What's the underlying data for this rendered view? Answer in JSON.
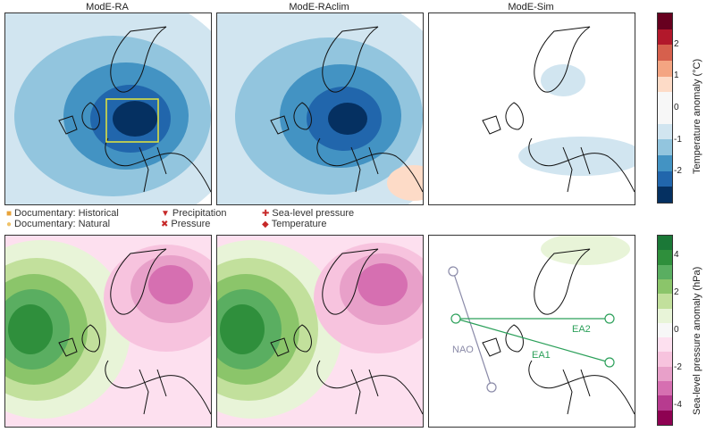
{
  "panels": {
    "col1": "ModE-RA",
    "col2": "ModE-RAclim",
    "col3": "ModE-Sim"
  },
  "legend": {
    "doc_hist": "Documentary: Historical",
    "doc_nat": "Documentary: Natural",
    "precip": "Precipitation",
    "pressure": "Pressure",
    "slp": "Sea-level pressure",
    "temp": "Temperature"
  },
  "colorbar_temp": {
    "label": "Temperature anomaly (°C)",
    "ticks": [
      "2",
      "1",
      "0",
      "-1",
      "-2"
    ],
    "colors": [
      "#67001f",
      "#b2182b",
      "#d6604d",
      "#f4a582",
      "#fddbc7",
      "#f7f7f7",
      "#f7f7f7",
      "#d1e5f0",
      "#92c5de",
      "#4393c3",
      "#2166ac",
      "#053061"
    ]
  },
  "colorbar_slp": {
    "label": "Sea-level pressure anomaly (hPa)",
    "ticks": [
      "4",
      "2",
      "0",
      "-2",
      "-4"
    ],
    "colors": [
      "#1b7837",
      "#2f8f3c",
      "#5aae61",
      "#8bc56a",
      "#c2e09c",
      "#e8f4d8",
      "#f7f7f7",
      "#fde0ef",
      "#f7c3de",
      "#e8a0c9",
      "#d66fb1",
      "#b73b8f",
      "#8e0152"
    ]
  },
  "indices": {
    "nao": "NAO",
    "ea1": "EA1",
    "ea2": "EA2"
  },
  "colors": {
    "nao_line": "#8a8aa8",
    "ea_line": "#2ca05a",
    "box": "#e6e63c"
  }
}
